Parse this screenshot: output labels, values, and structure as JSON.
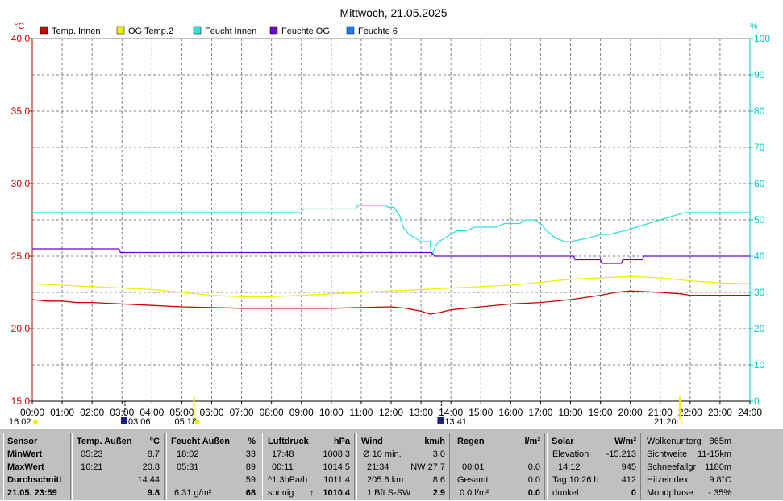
{
  "title": "Mittwoch, 21.05.2025",
  "colors": {
    "temp_innen": "#cc0000",
    "og_temp2": "#f0f000",
    "feucht_innen": "#30e0e0",
    "feuchte_og": "#7000d0",
    "feuchte6": "#1e7ff0",
    "right_axis": "#00c8c8",
    "left_axis": "#cc0000",
    "background": "#ffffff",
    "panel": "#c0c0c0"
  },
  "chart_data": {
    "type": "line",
    "title": "Mittwoch, 21.05.2025",
    "x_unit": "hours",
    "xlim": [
      0,
      24
    ],
    "ylim_left": [
      15,
      40
    ],
    "ylim_right": [
      0,
      100
    ],
    "y_left_unit": "°C",
    "y_right_unit": "%",
    "x_ticks": [
      "00:00",
      "01:00",
      "02:00",
      "03:00",
      "04:00",
      "05:00",
      "06:00",
      "07:00",
      "08:00",
      "09:00",
      "10:00",
      "11:00",
      "12:00",
      "13:00",
      "14:00",
      "15:00",
      "16:00",
      "17:00",
      "18:00",
      "19:00",
      "20:00",
      "21:00",
      "22:00",
      "23:00",
      "24:00"
    ],
    "y_left_ticks": [
      "15.0",
      "20.0",
      "25.0",
      "30.0",
      "35.0",
      "40.0"
    ],
    "y_right_ticks": [
      "0",
      "10",
      "20",
      "30",
      "40",
      "50",
      "60",
      "70",
      "80",
      "90",
      "100"
    ],
    "grid": true,
    "legend_position": "top-left",
    "series": [
      {
        "name": "Temp. Innen",
        "axis": "left",
        "color": "#cc0000",
        "x": [
          0,
          0.5,
          1,
          1.5,
          2,
          3,
          4,
          5,
          6,
          7,
          8,
          9,
          10,
          11,
          12,
          12.5,
          13,
          13.3,
          13.6,
          14,
          14.5,
          15,
          16,
          17,
          18,
          19,
          19.5,
          20,
          21,
          21.7,
          22,
          23,
          24
        ],
        "y": [
          22.0,
          21.9,
          21.9,
          21.8,
          21.8,
          21.7,
          21.6,
          21.5,
          21.45,
          21.4,
          21.4,
          21.4,
          21.4,
          21.45,
          21.5,
          21.4,
          21.2,
          21.0,
          21.1,
          21.3,
          21.4,
          21.5,
          21.7,
          21.8,
          22.0,
          22.3,
          22.5,
          22.6,
          22.5,
          22.4,
          22.3,
          22.3,
          22.3
        ]
      },
      {
        "name": "OG Temp.2",
        "axis": "left",
        "color": "#f0f000",
        "x": [
          0,
          1,
          2,
          3,
          4,
          5,
          6,
          7,
          8,
          9,
          10,
          11,
          12,
          13,
          14,
          15,
          16,
          17,
          18,
          19,
          20,
          21,
          22,
          23,
          24
        ],
        "y": [
          23.1,
          23.0,
          22.9,
          22.8,
          22.7,
          22.5,
          22.3,
          22.2,
          22.2,
          22.3,
          22.4,
          22.5,
          22.6,
          22.7,
          22.8,
          22.9,
          23.0,
          23.2,
          23.4,
          23.5,
          23.6,
          23.5,
          23.3,
          23.15,
          23.1
        ]
      },
      {
        "name": "Feucht Innen",
        "axis": "right",
        "color": "#30e0e0",
        "x": [
          0,
          9,
          9.05,
          10.8,
          10.9,
          11.8,
          11.9,
          12.1,
          12.3,
          12.4,
          12.6,
          12.8,
          13.0,
          13.3,
          13.35,
          13.5,
          13.6,
          13.8,
          14.0,
          14.2,
          14.5,
          14.8,
          15.5,
          15.8,
          16.3,
          16.5,
          16.8,
          17.0,
          17.2,
          17.5,
          17.8,
          18.0,
          18.3,
          18.6,
          19.0,
          19.3,
          19.8,
          20.2,
          20.6,
          21.0,
          21.4,
          21.8,
          22.0,
          24
        ],
        "y": [
          52,
          52,
          53,
          53,
          54,
          54,
          53.5,
          53.5,
          51,
          48,
          46,
          45,
          44,
          44,
          40,
          43,
          44,
          45,
          46,
          47,
          47,
          48,
          48,
          49,
          49,
          50,
          50,
          49,
          47,
          45,
          44,
          44,
          44.5,
          45,
          46,
          46,
          47,
          48,
          49,
          50,
          51,
          52,
          52,
          52
        ]
      },
      {
        "name": "Feuchte OG",
        "axis": "right",
        "color": "#7000d0",
        "x": [
          0,
          2.9,
          2.95,
          13.35,
          13.45,
          18.1,
          18.15,
          19.0,
          19.05,
          19.7,
          19.75,
          20.4,
          20.45,
          24
        ],
        "y": [
          42,
          42,
          41,
          41,
          40,
          40,
          39,
          39,
          38,
          38,
          39,
          39,
          40,
          40
        ]
      },
      {
        "name": "Feuchte 6",
        "axis": "right",
        "color": "#1e7ff0",
        "x": [],
        "y": []
      }
    ],
    "markers": {
      "sunrise": "16:02",
      "moon_marker_1": "03:06",
      "marker_2": "05:18",
      "moon_marker_2": "13:41",
      "sunset": "21:20"
    }
  },
  "stats": {
    "sensor": {
      "header": "Sensor",
      "rows": [
        "MinWert",
        "MaxWert",
        "Durchschnitt",
        "21.05. 23:59"
      ]
    },
    "temp": {
      "header": "Temp. Außen",
      "unit": "°C",
      "min_time": "05:23",
      "min_val": "8.7",
      "max_time": "16:21",
      "max_val": "20.8",
      "avg": "14.44",
      "current": "9.8"
    },
    "feucht": {
      "header": "Feucht Außen",
      "unit": "%",
      "min_time": "18:02",
      "min_val": "33",
      "max_time": "05:31",
      "max_val": "89",
      "avg": "59",
      "abs": "6.31 g/m²",
      "current": "68"
    },
    "druck": {
      "header": "Luftdruck",
      "unit": "hPa",
      "min_time": "17:48",
      "min_val": "1008.3",
      "max_time": "00:11",
      "max_val": "1014.5",
      "trend_label": "^1.3hPa/h",
      "trend_val": "1011.4",
      "weather": "sonnig",
      "current": "1010.4"
    },
    "wind": {
      "header": "Wind",
      "unit": "km/h",
      "avg_label": "Ø 10 min.",
      "avg_val": "3.0",
      "max_time": "21:34",
      "max_val": "NW 27.7",
      "dist": "205.6 km",
      "dist_val": "8.6",
      "bft": "1 Bft S-SW",
      "current": "2.9"
    },
    "regen": {
      "header": "Regen",
      "unit": "l/m²",
      "r2_time": "00:01",
      "r2_val": "0.0",
      "r3_label": "Gesamt:",
      "r3_val": "0.0",
      "r4_label": "0.0 l/m²",
      "current": "0.0"
    },
    "solar": {
      "header": "Solar",
      "unit": "W/m²",
      "elev_label": "Elevation",
      "elev_val": "-15.213",
      "max_time": "14:12",
      "max_val": "945",
      "day_label": "Tag:10:26 h",
      "day_val": "412",
      "state": "dunkel",
      "current": "0"
    },
    "extra": {
      "r1_label": "Wolkenunterg",
      "r1_val": "865m",
      "r2_label": "Sichtweite",
      "r2_val": "11-15km",
      "r3_label": "Schneefallgr",
      "r3_val": "1180m",
      "r4_label": "Hitzeindex",
      "r4_val": "9.8°C",
      "r5_label": "Mondphase",
      "r5_val": "- 35%"
    }
  }
}
